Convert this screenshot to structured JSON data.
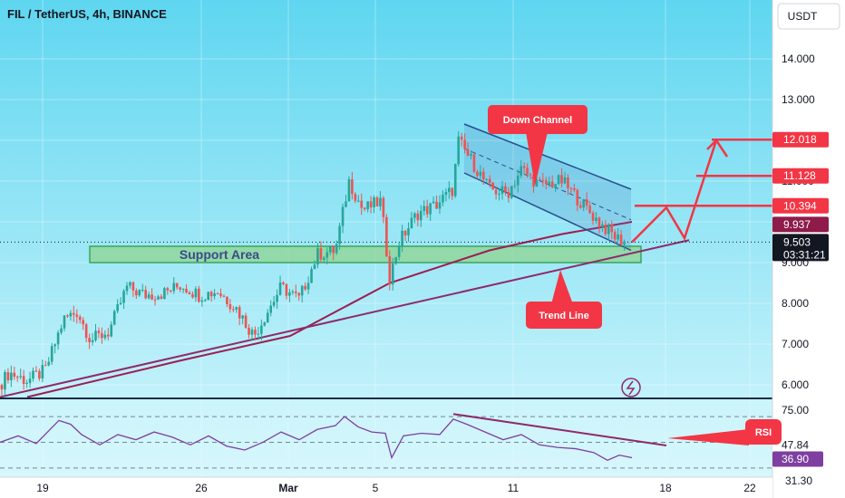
{
  "header": {
    "title": "FIL / TetherUS, 4h, BINANCE"
  },
  "currency_button": "USDT",
  "colors": {
    "background_top": "#5fd6f0",
    "background_bottom": "#d6f7fc",
    "candle_up": "#26a69a",
    "candle_down": "#ef5350",
    "ma_line": "#9c1e52",
    "trend_line": "#8e2a6a",
    "channel": "#2b4e8c",
    "projection": "#f23645",
    "support_fill": "#8fd48f",
    "support_border": "#3aa55c",
    "rsi_line": "#7e3fa0"
  },
  "chart_data": [
    {
      "type": "candlestick",
      "symbol": "FIL/USDT",
      "timeframe": "4h",
      "exchange": "BINANCE",
      "ylim": [
        5.7,
        15.0
      ],
      "y_ticks": [
        "14.000",
        "13.000",
        "12.000",
        "11.000",
        "10.000",
        "9.000",
        "8.000",
        "7.000",
        "6.000"
      ],
      "x_ticks": [
        "19",
        "26",
        "Mar",
        "5",
        "11",
        "18",
        "22"
      ],
      "price_path": [
        [
          0,
          6.0
        ],
        [
          10,
          6.3
        ],
        [
          30,
          6.1
        ],
        [
          50,
          6.35
        ],
        [
          70,
          7.6
        ],
        [
          85,
          7.8
        ],
        [
          100,
          7.1
        ],
        [
          120,
          7.3
        ],
        [
          140,
          8.4
        ],
        [
          160,
          8.2
        ],
        [
          180,
          8.25
        ],
        [
          200,
          8.45
        ],
        [
          220,
          8.2
        ],
        [
          240,
          8.3
        ],
        [
          260,
          7.9
        ],
        [
          280,
          7.2
        ],
        [
          295,
          7.8
        ],
        [
          310,
          8.4
        ],
        [
          330,
          8.1
        ],
        [
          350,
          9.2
        ],
        [
          370,
          9.3
        ],
        [
          385,
          11.0
        ],
        [
          400,
          10.3
        ],
        [
          420,
          10.5
        ],
        [
          430,
          8.6
        ],
        [
          440,
          9.5
        ],
        [
          460,
          10.2
        ],
        [
          480,
          10.4
        ],
        [
          500,
          10.8
        ],
        [
          505,
          12.0
        ],
        [
          520,
          11.5
        ],
        [
          540,
          10.8
        ],
        [
          560,
          10.7
        ],
        [
          575,
          11.3
        ],
        [
          595,
          10.9
        ],
        [
          620,
          11.0
        ],
        [
          640,
          10.5
        ],
        [
          660,
          10.0
        ],
        [
          680,
          9.6
        ],
        [
          692,
          9.5
        ]
      ],
      "series": [
        {
          "name": "Support Area",
          "type": "zone",
          "values": [
            9.0,
            9.4
          ]
        },
        {
          "name": "Trend Line",
          "type": "line",
          "x": [
            0,
            760
          ],
          "values": [
            5.7,
            9.55
          ]
        },
        {
          "name": "Down Channel",
          "type": "channel",
          "x": [
            512,
            696
          ],
          "upper": [
            12.4,
            10.8
          ],
          "lower": [
            11.2,
            9.3
          ]
        },
        {
          "type": "moving_average",
          "x": [
            30,
            200,
            320,
            430,
            540,
            620,
            697
          ],
          "values": [
            5.7,
            6.6,
            7.2,
            8.5,
            9.3,
            9.7,
            10.0
          ]
        },
        {
          "type": "projection",
          "x": [
            697,
            735,
            755,
            790
          ],
          "values": [
            9.5,
            10.35,
            9.6,
            12.0
          ]
        }
      ],
      "price_labels": [
        {
          "value": 12.018,
          "text": "12.018",
          "color": "#f23645"
        },
        {
          "value": 11.128,
          "text": "11.128",
          "color": "#f23645"
        },
        {
          "value": 10.394,
          "text": "10.394",
          "color": "#f23645"
        },
        {
          "value": 9.937,
          "text": "9.937",
          "color": "#8e1b4a"
        },
        {
          "value": 9.503,
          "text": "9.503",
          "text2": "03:31:21",
          "color": "#131722"
        }
      ],
      "annotations": [
        "Down Channel",
        "Trend Line",
        "Support Area"
      ]
    },
    {
      "type": "line",
      "indicator": "RSI",
      "label": "RSI",
      "ylim": [
        28,
        82
      ],
      "guides": [
        70,
        50,
        30
      ],
      "y_ticks": [
        "75.00",
        "31.30"
      ],
      "value_labels": [
        {
          "value": 47.84,
          "text": "47.84"
        },
        {
          "value": 36.9,
          "text": "36.90"
        }
      ],
      "values": [
        [
          0,
          50
        ],
        [
          20,
          55
        ],
        [
          40,
          49
        ],
        [
          65,
          67
        ],
        [
          78,
          64
        ],
        [
          90,
          56
        ],
        [
          110,
          48
        ],
        [
          130,
          56
        ],
        [
          150,
          52
        ],
        [
          170,
          58
        ],
        [
          190,
          54
        ],
        [
          210,
          48
        ],
        [
          230,
          55
        ],
        [
          250,
          47
        ],
        [
          270,
          44
        ],
        [
          290,
          50
        ],
        [
          310,
          58
        ],
        [
          330,
          52
        ],
        [
          350,
          60
        ],
        [
          370,
          63
        ],
        [
          380,
          70
        ],
        [
          395,
          62
        ],
        [
          410,
          58
        ],
        [
          425,
          57
        ],
        [
          432,
          38
        ],
        [
          445,
          55
        ],
        [
          465,
          57
        ],
        [
          485,
          56
        ],
        [
          500,
          68
        ],
        [
          515,
          64
        ],
        [
          535,
          58
        ],
        [
          555,
          52
        ],
        [
          575,
          56
        ],
        [
          595,
          48
        ],
        [
          615,
          46
        ],
        [
          635,
          45
        ],
        [
          655,
          42
        ],
        [
          670,
          36
        ],
        [
          683,
          40
        ],
        [
          697,
          38
        ]
      ],
      "divergence_line": {
        "x": [
          500,
          735
        ],
        "values": [
          72,
          47.5
        ]
      }
    }
  ]
}
